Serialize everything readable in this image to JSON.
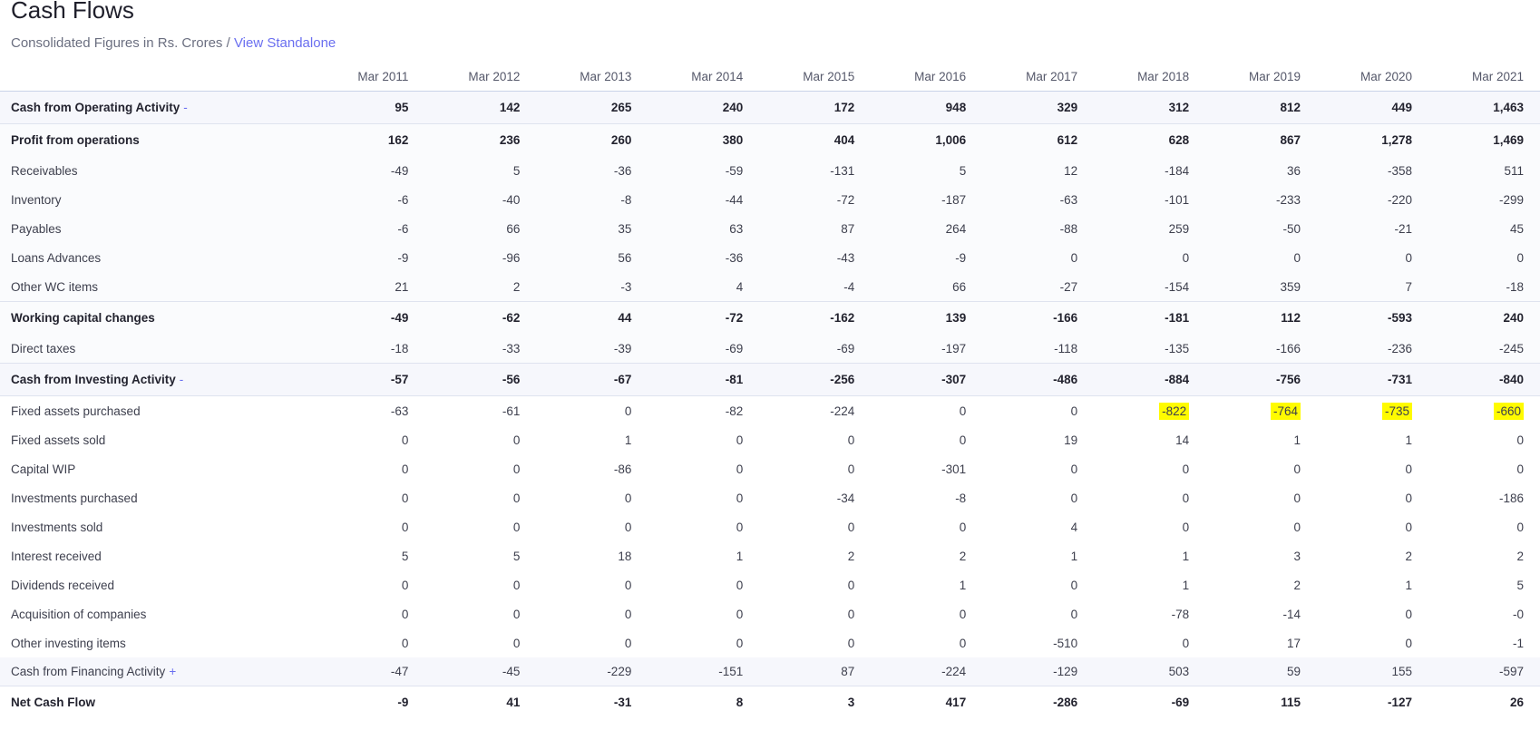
{
  "header": {
    "title": "Cash Flows",
    "subtitle_prefix": "Consolidated Figures in Rs. Crores / ",
    "standalone_link": "View Standalone"
  },
  "columns": [
    "Mar 2011",
    "Mar 2012",
    "Mar 2013",
    "Mar 2014",
    "Mar 2015",
    "Mar 2016",
    "Mar 2017",
    "Mar 2018",
    "Mar 2019",
    "Mar 2020",
    "Mar 2021"
  ],
  "rows": [
    {
      "label": "Cash from Operating Activity",
      "toggle": "-",
      "style": "r-head",
      "values": [
        "95",
        "142",
        "265",
        "240",
        "172",
        "948",
        "329",
        "312",
        "812",
        "449",
        "1,463"
      ]
    },
    {
      "label": "Profit from operations",
      "style": "r-sum",
      "values": [
        "162",
        "236",
        "260",
        "380",
        "404",
        "1,006",
        "612",
        "628",
        "867",
        "1,278",
        "1,469"
      ]
    },
    {
      "label": "Receivables",
      "style": "r-sub",
      "values": [
        "-49",
        "5",
        "-36",
        "-59",
        "-131",
        "5",
        "12",
        "-184",
        "36",
        "-358",
        "511"
      ]
    },
    {
      "label": "Inventory",
      "style": "r-sub",
      "values": [
        "-6",
        "-40",
        "-8",
        "-44",
        "-72",
        "-187",
        "-63",
        "-101",
        "-233",
        "-220",
        "-299"
      ]
    },
    {
      "label": "Payables",
      "style": "r-sub",
      "values": [
        "-6",
        "66",
        "35",
        "63",
        "87",
        "264",
        "-88",
        "259",
        "-50",
        "-21",
        "45"
      ]
    },
    {
      "label": "Loans Advances",
      "style": "r-sub",
      "values": [
        "-9",
        "-96",
        "56",
        "-36",
        "-43",
        "-9",
        "0",
        "0",
        "0",
        "0",
        "0"
      ]
    },
    {
      "label": "Other WC items",
      "style": "r-sub",
      "values": [
        "21",
        "2",
        "-3",
        "4",
        "-4",
        "66",
        "-27",
        "-154",
        "359",
        "7",
        "-18"
      ]
    },
    {
      "label": "Working capital changes",
      "style": "r-sum r-sep",
      "values": [
        "-49",
        "-62",
        "44",
        "-72",
        "-162",
        "139",
        "-166",
        "-181",
        "112",
        "-593",
        "240"
      ]
    },
    {
      "label": "Direct taxes",
      "style": "r-sub",
      "values": [
        "-18",
        "-33",
        "-39",
        "-69",
        "-69",
        "-197",
        "-118",
        "-135",
        "-166",
        "-236",
        "-245"
      ]
    },
    {
      "label": "Cash from Investing Activity",
      "toggle": "-",
      "style": "r-head r-sep",
      "values": [
        "-57",
        "-56",
        "-67",
        "-81",
        "-256",
        "-307",
        "-486",
        "-884",
        "-756",
        "-731",
        "-840"
      ]
    },
    {
      "label": "Fixed assets purchased",
      "style": "",
      "values": [
        "-63",
        "-61",
        "0",
        "-82",
        "-224",
        "0",
        "0",
        "-822",
        "-764",
        "-735",
        "-660"
      ],
      "highlight": [
        7,
        8,
        9,
        10
      ]
    },
    {
      "label": "Fixed assets sold",
      "style": "",
      "values": [
        "0",
        "0",
        "1",
        "0",
        "0",
        "0",
        "19",
        "14",
        "1",
        "1",
        "0"
      ]
    },
    {
      "label": "Capital WIP",
      "style": "",
      "values": [
        "0",
        "0",
        "-86",
        "0",
        "0",
        "-301",
        "0",
        "0",
        "0",
        "0",
        "0"
      ]
    },
    {
      "label": "Investments purchased",
      "style": "",
      "values": [
        "0",
        "0",
        "0",
        "0",
        "-34",
        "-8",
        "0",
        "0",
        "0",
        "0",
        "-186"
      ]
    },
    {
      "label": "Investments sold",
      "style": "",
      "values": [
        "0",
        "0",
        "0",
        "0",
        "0",
        "0",
        "4",
        "0",
        "0",
        "0",
        "0"
      ]
    },
    {
      "label": "Interest received",
      "style": "",
      "values": [
        "5",
        "5",
        "18",
        "1",
        "2",
        "2",
        "1",
        "1",
        "3",
        "2",
        "2"
      ]
    },
    {
      "label": "Dividends received",
      "style": "",
      "values": [
        "0",
        "0",
        "0",
        "0",
        "0",
        "1",
        "0",
        "1",
        "2",
        "1",
        "5"
      ]
    },
    {
      "label": "Acquisition of companies",
      "style": "",
      "values": [
        "0",
        "0",
        "0",
        "0",
        "0",
        "0",
        "0",
        "-78",
        "-14",
        "0",
        "-0"
      ]
    },
    {
      "label": "Other investing items",
      "style": "",
      "values": [
        "0",
        "0",
        "0",
        "0",
        "0",
        "0",
        "-510",
        "0",
        "17",
        "0",
        "-1"
      ]
    },
    {
      "label": "Cash from Financing Activity",
      "toggle": "+",
      "style": "r-fin",
      "values": [
        "-47",
        "-45",
        "-229",
        "-151",
        "87",
        "-224",
        "-129",
        "503",
        "59",
        "155",
        "-597"
      ]
    },
    {
      "label": "Net Cash Flow",
      "style": "r-net",
      "values": [
        "-9",
        "41",
        "-31",
        "8",
        "3",
        "417",
        "-286",
        "-69",
        "115",
        "-127",
        "26"
      ]
    }
  ],
  "colors": {
    "link": "#6a6ff0",
    "highlight": "#fffb00",
    "head_row_bg": "#f6f7fc"
  }
}
